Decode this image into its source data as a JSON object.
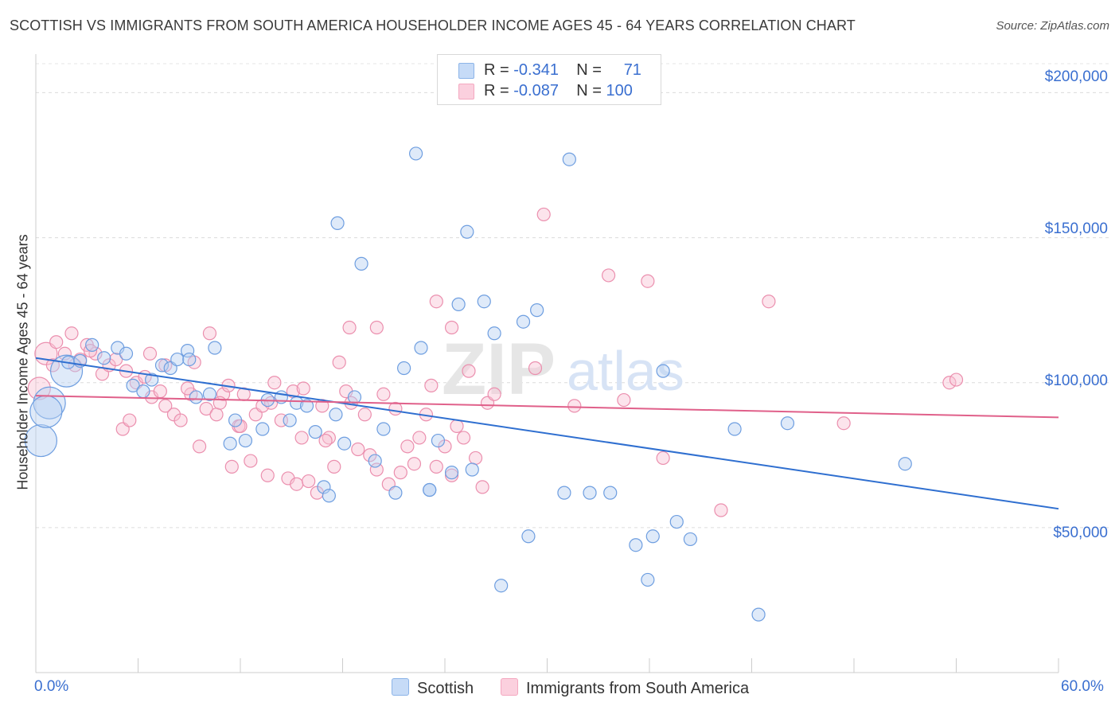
{
  "header": {
    "title": "SCOTTISH VS IMMIGRANTS FROM SOUTH AMERICA HOUSEHOLDER INCOME AGES 45 - 64 YEARS CORRELATION CHART",
    "source": "Source: ZipAtlas.com"
  },
  "legend_top": {
    "row1": {
      "r_label": "R = ",
      "r_value": "-0.341",
      "n_label": "N = ",
      "n_value": "71"
    },
    "row2": {
      "r_label": "R = ",
      "r_value": "-0.087",
      "n_label": "N = ",
      "n_value": "100"
    }
  },
  "watermark": {
    "zip": "ZIP",
    "atlas": "atlas"
  },
  "chart_data": {
    "type": "scatter",
    "title": "SCOTTISH VS IMMIGRANTS FROM SOUTH AMERICA HOUSEHOLDER INCOME AGES 45 - 64 YEARS CORRELATION CHART",
    "xlabel": "",
    "ylabel": "Householder Income Ages 45 - 64 years",
    "xlim": [
      0,
      60
    ],
    "ylim": [
      0,
      210000
    ],
    "x_tick_labels": [
      "0.0%",
      "60.0%"
    ],
    "y_tick_labels": [
      "$50,000",
      "$100,000",
      "$150,000",
      "$200,000"
    ],
    "y_ticks": [
      50000,
      100000,
      150000,
      200000
    ],
    "grid": true,
    "legend_position": "bottom",
    "series": [
      {
        "name": "Scottish",
        "color": "#8cb4e8",
        "trend_color": "#2f6fd0",
        "r": -0.341,
        "n": 71,
        "trend": {
          "x": [
            0,
            60
          ],
          "y": [
            108500,
            56500
          ]
        },
        "points": [
          {
            "x": 0.3,
            "y": 80000,
            "s": 2
          },
          {
            "x": 0.8,
            "y": 93000,
            "s": 2
          },
          {
            "x": 1.8,
            "y": 104000,
            "s": 2
          },
          {
            "x": 0.6,
            "y": 90000,
            "s": 2
          },
          {
            "x": 1.9,
            "y": 107000,
            "s": 0
          },
          {
            "x": 2.6,
            "y": 107500,
            "s": 0
          },
          {
            "x": 3.3,
            "y": 113000,
            "s": 0
          },
          {
            "x": 4.8,
            "y": 112000,
            "s": 0
          },
          {
            "x": 5.3,
            "y": 110000,
            "s": 0
          },
          {
            "x": 4.0,
            "y": 108500,
            "s": 0
          },
          {
            "x": 5.7,
            "y": 99000,
            "s": 0
          },
          {
            "x": 6.3,
            "y": 97000,
            "s": 0
          },
          {
            "x": 6.8,
            "y": 101000,
            "s": 0
          },
          {
            "x": 7.4,
            "y": 106000,
            "s": 0
          },
          {
            "x": 7.9,
            "y": 105000,
            "s": 0
          },
          {
            "x": 8.3,
            "y": 108000,
            "s": 0
          },
          {
            "x": 8.9,
            "y": 111000,
            "s": 0
          },
          {
            "x": 9.4,
            "y": 95000,
            "s": 0
          },
          {
            "x": 10.2,
            "y": 96000,
            "s": 0
          },
          {
            "x": 10.5,
            "y": 112000,
            "s": 0
          },
          {
            "x": 11.4,
            "y": 79000,
            "s": 0
          },
          {
            "x": 11.7,
            "y": 87000,
            "s": 0
          },
          {
            "x": 12.3,
            "y": 80000,
            "s": 0
          },
          {
            "x": 13.3,
            "y": 84000,
            "s": 0
          },
          {
            "x": 13.6,
            "y": 94000,
            "s": 0
          },
          {
            "x": 14.4,
            "y": 95000,
            "s": 0
          },
          {
            "x": 14.9,
            "y": 87000,
            "s": 0
          },
          {
            "x": 15.3,
            "y": 93000,
            "s": 0
          },
          {
            "x": 15.9,
            "y": 92000,
            "s": 0
          },
          {
            "x": 16.4,
            "y": 83000,
            "s": 0
          },
          {
            "x": 16.9,
            "y": 64000,
            "s": 0
          },
          {
            "x": 17.2,
            "y": 61000,
            "s": 0
          },
          {
            "x": 17.6,
            "y": 89000,
            "s": 0
          },
          {
            "x": 18.1,
            "y": 79000,
            "s": 0
          },
          {
            "x": 18.7,
            "y": 95000,
            "s": 0
          },
          {
            "x": 17.7,
            "y": 155000,
            "s": 0
          },
          {
            "x": 19.1,
            "y": 141000,
            "s": 0
          },
          {
            "x": 19.9,
            "y": 73000,
            "s": 0
          },
          {
            "x": 20.4,
            "y": 84000,
            "s": 0
          },
          {
            "x": 21.1,
            "y": 62000,
            "s": 0
          },
          {
            "x": 21.6,
            "y": 105000,
            "s": 0
          },
          {
            "x": 22.6,
            "y": 112000,
            "s": 0
          },
          {
            "x": 22.3,
            "y": 179000,
            "s": 0
          },
          {
            "x": 23.1,
            "y": 63000,
            "s": 0
          },
          {
            "x": 23.1,
            "y": 63000,
            "s": 0
          },
          {
            "x": 23.6,
            "y": 80000,
            "s": 0
          },
          {
            "x": 24.8,
            "y": 127000,
            "s": 0
          },
          {
            "x": 25.3,
            "y": 152000,
            "s": 0
          },
          {
            "x": 25.6,
            "y": 70000,
            "s": 0
          },
          {
            "x": 26.3,
            "y": 128000,
            "s": 0
          },
          {
            "x": 26.9,
            "y": 117000,
            "s": 0
          },
          {
            "x": 24.4,
            "y": 69000,
            "s": 0
          },
          {
            "x": 28.6,
            "y": 121000,
            "s": 0
          },
          {
            "x": 28.9,
            "y": 47000,
            "s": 0
          },
          {
            "x": 27.3,
            "y": 30000,
            "s": 0
          },
          {
            "x": 29.4,
            "y": 125000,
            "s": 0
          },
          {
            "x": 31.3,
            "y": 177000,
            "s": 0
          },
          {
            "x": 31.0,
            "y": 62000,
            "s": 0
          },
          {
            "x": 32.5,
            "y": 62000,
            "s": 0
          },
          {
            "x": 33.7,
            "y": 62000,
            "s": 0
          },
          {
            "x": 35.2,
            "y": 44000,
            "s": 0
          },
          {
            "x": 35.9,
            "y": 32000,
            "s": 0
          },
          {
            "x": 36.2,
            "y": 47000,
            "s": 0
          },
          {
            "x": 36.8,
            "y": 104000,
            "s": 0
          },
          {
            "x": 37.6,
            "y": 52000,
            "s": 0
          },
          {
            "x": 38.4,
            "y": 46000,
            "s": 0
          },
          {
            "x": 41.0,
            "y": 84000,
            "s": 0
          },
          {
            "x": 42.4,
            "y": 20000,
            "s": 0
          },
          {
            "x": 44.1,
            "y": 86000,
            "s": 0
          },
          {
            "x": 51.0,
            "y": 72000,
            "s": 0
          },
          {
            "x": 9.0,
            "y": 108000,
            "s": 0
          }
        ]
      },
      {
        "name": "Immigrants from South America",
        "color": "#f4a8c0",
        "trend_color": "#e0608a",
        "r": -0.087,
        "n": 100,
        "trend": {
          "x": [
            0,
            60
          ],
          "y": [
            95500,
            88000
          ]
        },
        "points": [
          {
            "x": 0.2,
            "y": 98000,
            "s": 1
          },
          {
            "x": 0.6,
            "y": 110000,
            "s": 1
          },
          {
            "x": 1.2,
            "y": 114000,
            "s": 0
          },
          {
            "x": 1.7,
            "y": 110000,
            "s": 0
          },
          {
            "x": 2.1,
            "y": 117000,
            "s": 0
          },
          {
            "x": 2.3,
            "y": 106000,
            "s": 0
          },
          {
            "x": 2.6,
            "y": 108000,
            "s": 0
          },
          {
            "x": 3.0,
            "y": 113000,
            "s": 0
          },
          {
            "x": 3.5,
            "y": 110000,
            "s": 0
          },
          {
            "x": 3.9,
            "y": 103000,
            "s": 0
          },
          {
            "x": 4.3,
            "y": 106000,
            "s": 0
          },
          {
            "x": 4.7,
            "y": 108000,
            "s": 0
          },
          {
            "x": 5.1,
            "y": 84000,
            "s": 0
          },
          {
            "x": 5.5,
            "y": 87000,
            "s": 0
          },
          {
            "x": 5.9,
            "y": 100000,
            "s": 0
          },
          {
            "x": 6.4,
            "y": 102000,
            "s": 0
          },
          {
            "x": 6.8,
            "y": 95000,
            "s": 0
          },
          {
            "x": 6.7,
            "y": 110000,
            "s": 0
          },
          {
            "x": 7.3,
            "y": 97000,
            "s": 0
          },
          {
            "x": 7.6,
            "y": 92000,
            "s": 0
          },
          {
            "x": 8.1,
            "y": 89000,
            "s": 0
          },
          {
            "x": 8.5,
            "y": 87000,
            "s": 0
          },
          {
            "x": 9.1,
            "y": 96000,
            "s": 0
          },
          {
            "x": 9.3,
            "y": 107000,
            "s": 0
          },
          {
            "x": 9.6,
            "y": 78000,
            "s": 0
          },
          {
            "x": 10.0,
            "y": 91000,
            "s": 0
          },
          {
            "x": 10.2,
            "y": 117000,
            "s": 0
          },
          {
            "x": 10.6,
            "y": 89000,
            "s": 0
          },
          {
            "x": 11.0,
            "y": 96000,
            "s": 0
          },
          {
            "x": 11.3,
            "y": 99000,
            "s": 0
          },
          {
            "x": 11.5,
            "y": 71000,
            "s": 0
          },
          {
            "x": 11.9,
            "y": 85000,
            "s": 0
          },
          {
            "x": 12.2,
            "y": 96000,
            "s": 0
          },
          {
            "x": 12.6,
            "y": 73000,
            "s": 0
          },
          {
            "x": 12.9,
            "y": 89000,
            "s": 0
          },
          {
            "x": 13.3,
            "y": 92000,
            "s": 0
          },
          {
            "x": 13.6,
            "y": 68000,
            "s": 0
          },
          {
            "x": 14.0,
            "y": 100000,
            "s": 0
          },
          {
            "x": 14.4,
            "y": 87000,
            "s": 0
          },
          {
            "x": 14.8,
            "y": 67000,
            "s": 0
          },
          {
            "x": 15.1,
            "y": 97000,
            "s": 0
          },
          {
            "x": 15.3,
            "y": 65000,
            "s": 0
          },
          {
            "x": 15.6,
            "y": 81000,
            "s": 0
          },
          {
            "x": 16.0,
            "y": 66000,
            "s": 0
          },
          {
            "x": 16.5,
            "y": 62000,
            "s": 0
          },
          {
            "x": 16.8,
            "y": 92000,
            "s": 0
          },
          {
            "x": 17.2,
            "y": 81000,
            "s": 0
          },
          {
            "x": 17.5,
            "y": 71000,
            "s": 0
          },
          {
            "x": 17.8,
            "y": 107000,
            "s": 0
          },
          {
            "x": 18.2,
            "y": 97000,
            "s": 0
          },
          {
            "x": 18.5,
            "y": 93000,
            "s": 0
          },
          {
            "x": 18.9,
            "y": 77000,
            "s": 0
          },
          {
            "x": 19.3,
            "y": 89000,
            "s": 0
          },
          {
            "x": 19.6,
            "y": 75000,
            "s": 0
          },
          {
            "x": 20.0,
            "y": 70000,
            "s": 0
          },
          {
            "x": 20.4,
            "y": 96000,
            "s": 0
          },
          {
            "x": 20.7,
            "y": 65000,
            "s": 0
          },
          {
            "x": 21.1,
            "y": 91000,
            "s": 0
          },
          {
            "x": 21.4,
            "y": 69000,
            "s": 0
          },
          {
            "x": 21.8,
            "y": 78000,
            "s": 0
          },
          {
            "x": 22.2,
            "y": 72000,
            "s": 0
          },
          {
            "x": 22.5,
            "y": 81000,
            "s": 0
          },
          {
            "x": 22.9,
            "y": 89000,
            "s": 0
          },
          {
            "x": 23.2,
            "y": 99000,
            "s": 0
          },
          {
            "x": 23.5,
            "y": 71000,
            "s": 0
          },
          {
            "x": 24.0,
            "y": 78000,
            "s": 0
          },
          {
            "x": 24.4,
            "y": 68000,
            "s": 0
          },
          {
            "x": 24.7,
            "y": 85000,
            "s": 0
          },
          {
            "x": 25.1,
            "y": 81000,
            "s": 0
          },
          {
            "x": 25.4,
            "y": 104000,
            "s": 0
          },
          {
            "x": 25.8,
            "y": 74000,
            "s": 0
          },
          {
            "x": 26.2,
            "y": 64000,
            "s": 0
          },
          {
            "x": 26.5,
            "y": 93000,
            "s": 0
          },
          {
            "x": 26.9,
            "y": 96000,
            "s": 0
          },
          {
            "x": 24.4,
            "y": 119000,
            "s": 0
          },
          {
            "x": 20.0,
            "y": 119000,
            "s": 0
          },
          {
            "x": 18.4,
            "y": 119000,
            "s": 0
          },
          {
            "x": 23.5,
            "y": 128000,
            "s": 0
          },
          {
            "x": 29.3,
            "y": 105000,
            "s": 0
          },
          {
            "x": 29.8,
            "y": 158000,
            "s": 0
          },
          {
            "x": 31.6,
            "y": 92000,
            "s": 0
          },
          {
            "x": 33.6,
            "y": 137000,
            "s": 0
          },
          {
            "x": 34.5,
            "y": 94000,
            "s": 0
          },
          {
            "x": 35.9,
            "y": 135000,
            "s": 0
          },
          {
            "x": 36.8,
            "y": 74000,
            "s": 0
          },
          {
            "x": 40.2,
            "y": 56000,
            "s": 0
          },
          {
            "x": 43.0,
            "y": 128000,
            "s": 0
          },
          {
            "x": 47.4,
            "y": 86000,
            "s": 0
          },
          {
            "x": 53.6,
            "y": 100000,
            "s": 0
          },
          {
            "x": 54.0,
            "y": 101000,
            "s": 0
          },
          {
            "x": 1.0,
            "y": 106000,
            "s": 0
          },
          {
            "x": 3.2,
            "y": 111000,
            "s": 0
          },
          {
            "x": 5.3,
            "y": 104000,
            "s": 0
          },
          {
            "x": 7.6,
            "y": 106000,
            "s": 0
          },
          {
            "x": 8.9,
            "y": 98000,
            "s": 0
          },
          {
            "x": 10.8,
            "y": 93000,
            "s": 0
          },
          {
            "x": 12.0,
            "y": 85000,
            "s": 0
          },
          {
            "x": 13.8,
            "y": 93000,
            "s": 0
          },
          {
            "x": 15.7,
            "y": 98000,
            "s": 0
          },
          {
            "x": 17.0,
            "y": 80000,
            "s": 0
          }
        ]
      }
    ]
  }
}
